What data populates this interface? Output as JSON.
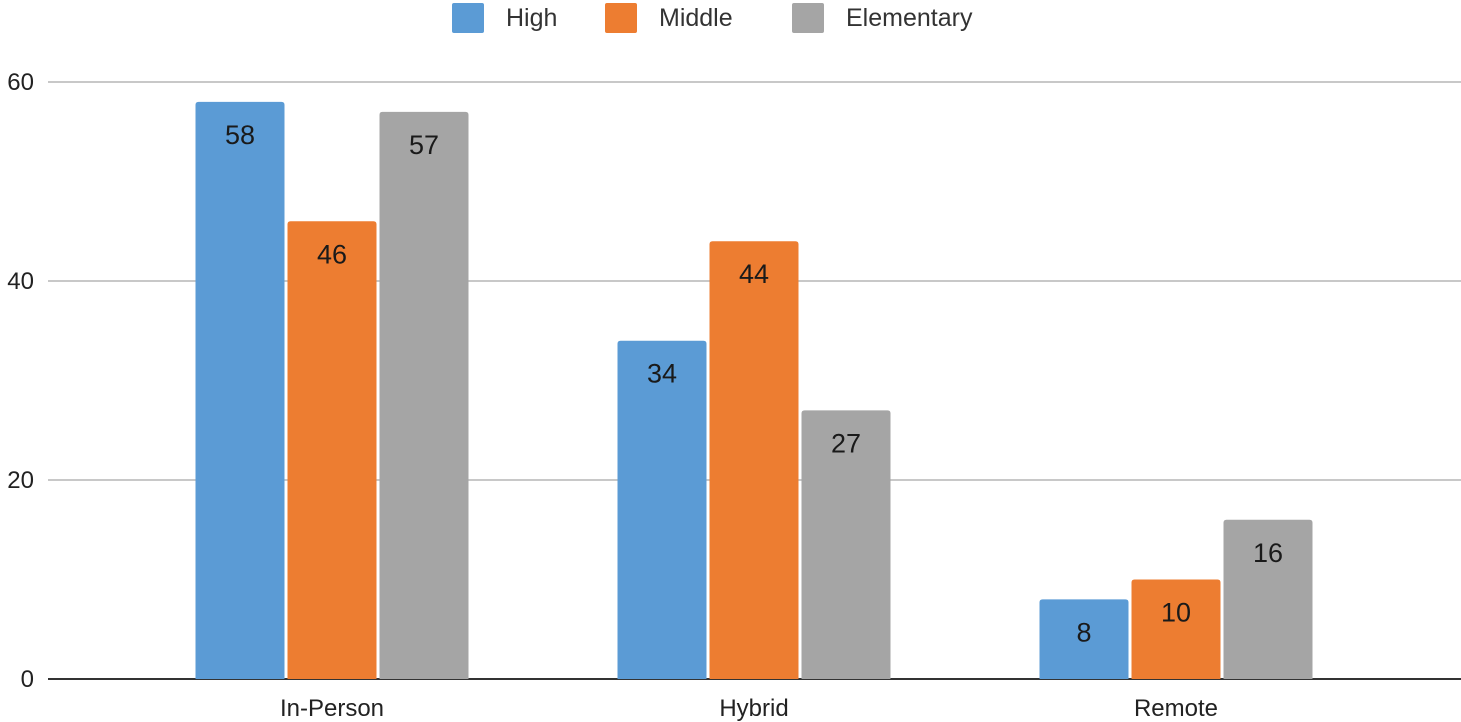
{
  "chart_data": {
    "type": "bar",
    "categories": [
      "In-Person",
      "Hybrid",
      "Remote"
    ],
    "series": [
      {
        "name": "High",
        "values": [
          58,
          34,
          8
        ],
        "color": "#5b9bd5"
      },
      {
        "name": "Middle",
        "values": [
          46,
          44,
          10
        ],
        "color": "#ed7d31"
      },
      {
        "name": "Elementary",
        "values": [
          57,
          27,
          16
        ],
        "color": "#a5a5a5"
      }
    ],
    "title": "",
    "xlabel": "",
    "ylabel": "",
    "ylim": [
      0,
      60
    ],
    "yticks": [
      0,
      20,
      40,
      60
    ],
    "grid": true,
    "legend_position": "top-center",
    "data_labels": "inside-top"
  }
}
